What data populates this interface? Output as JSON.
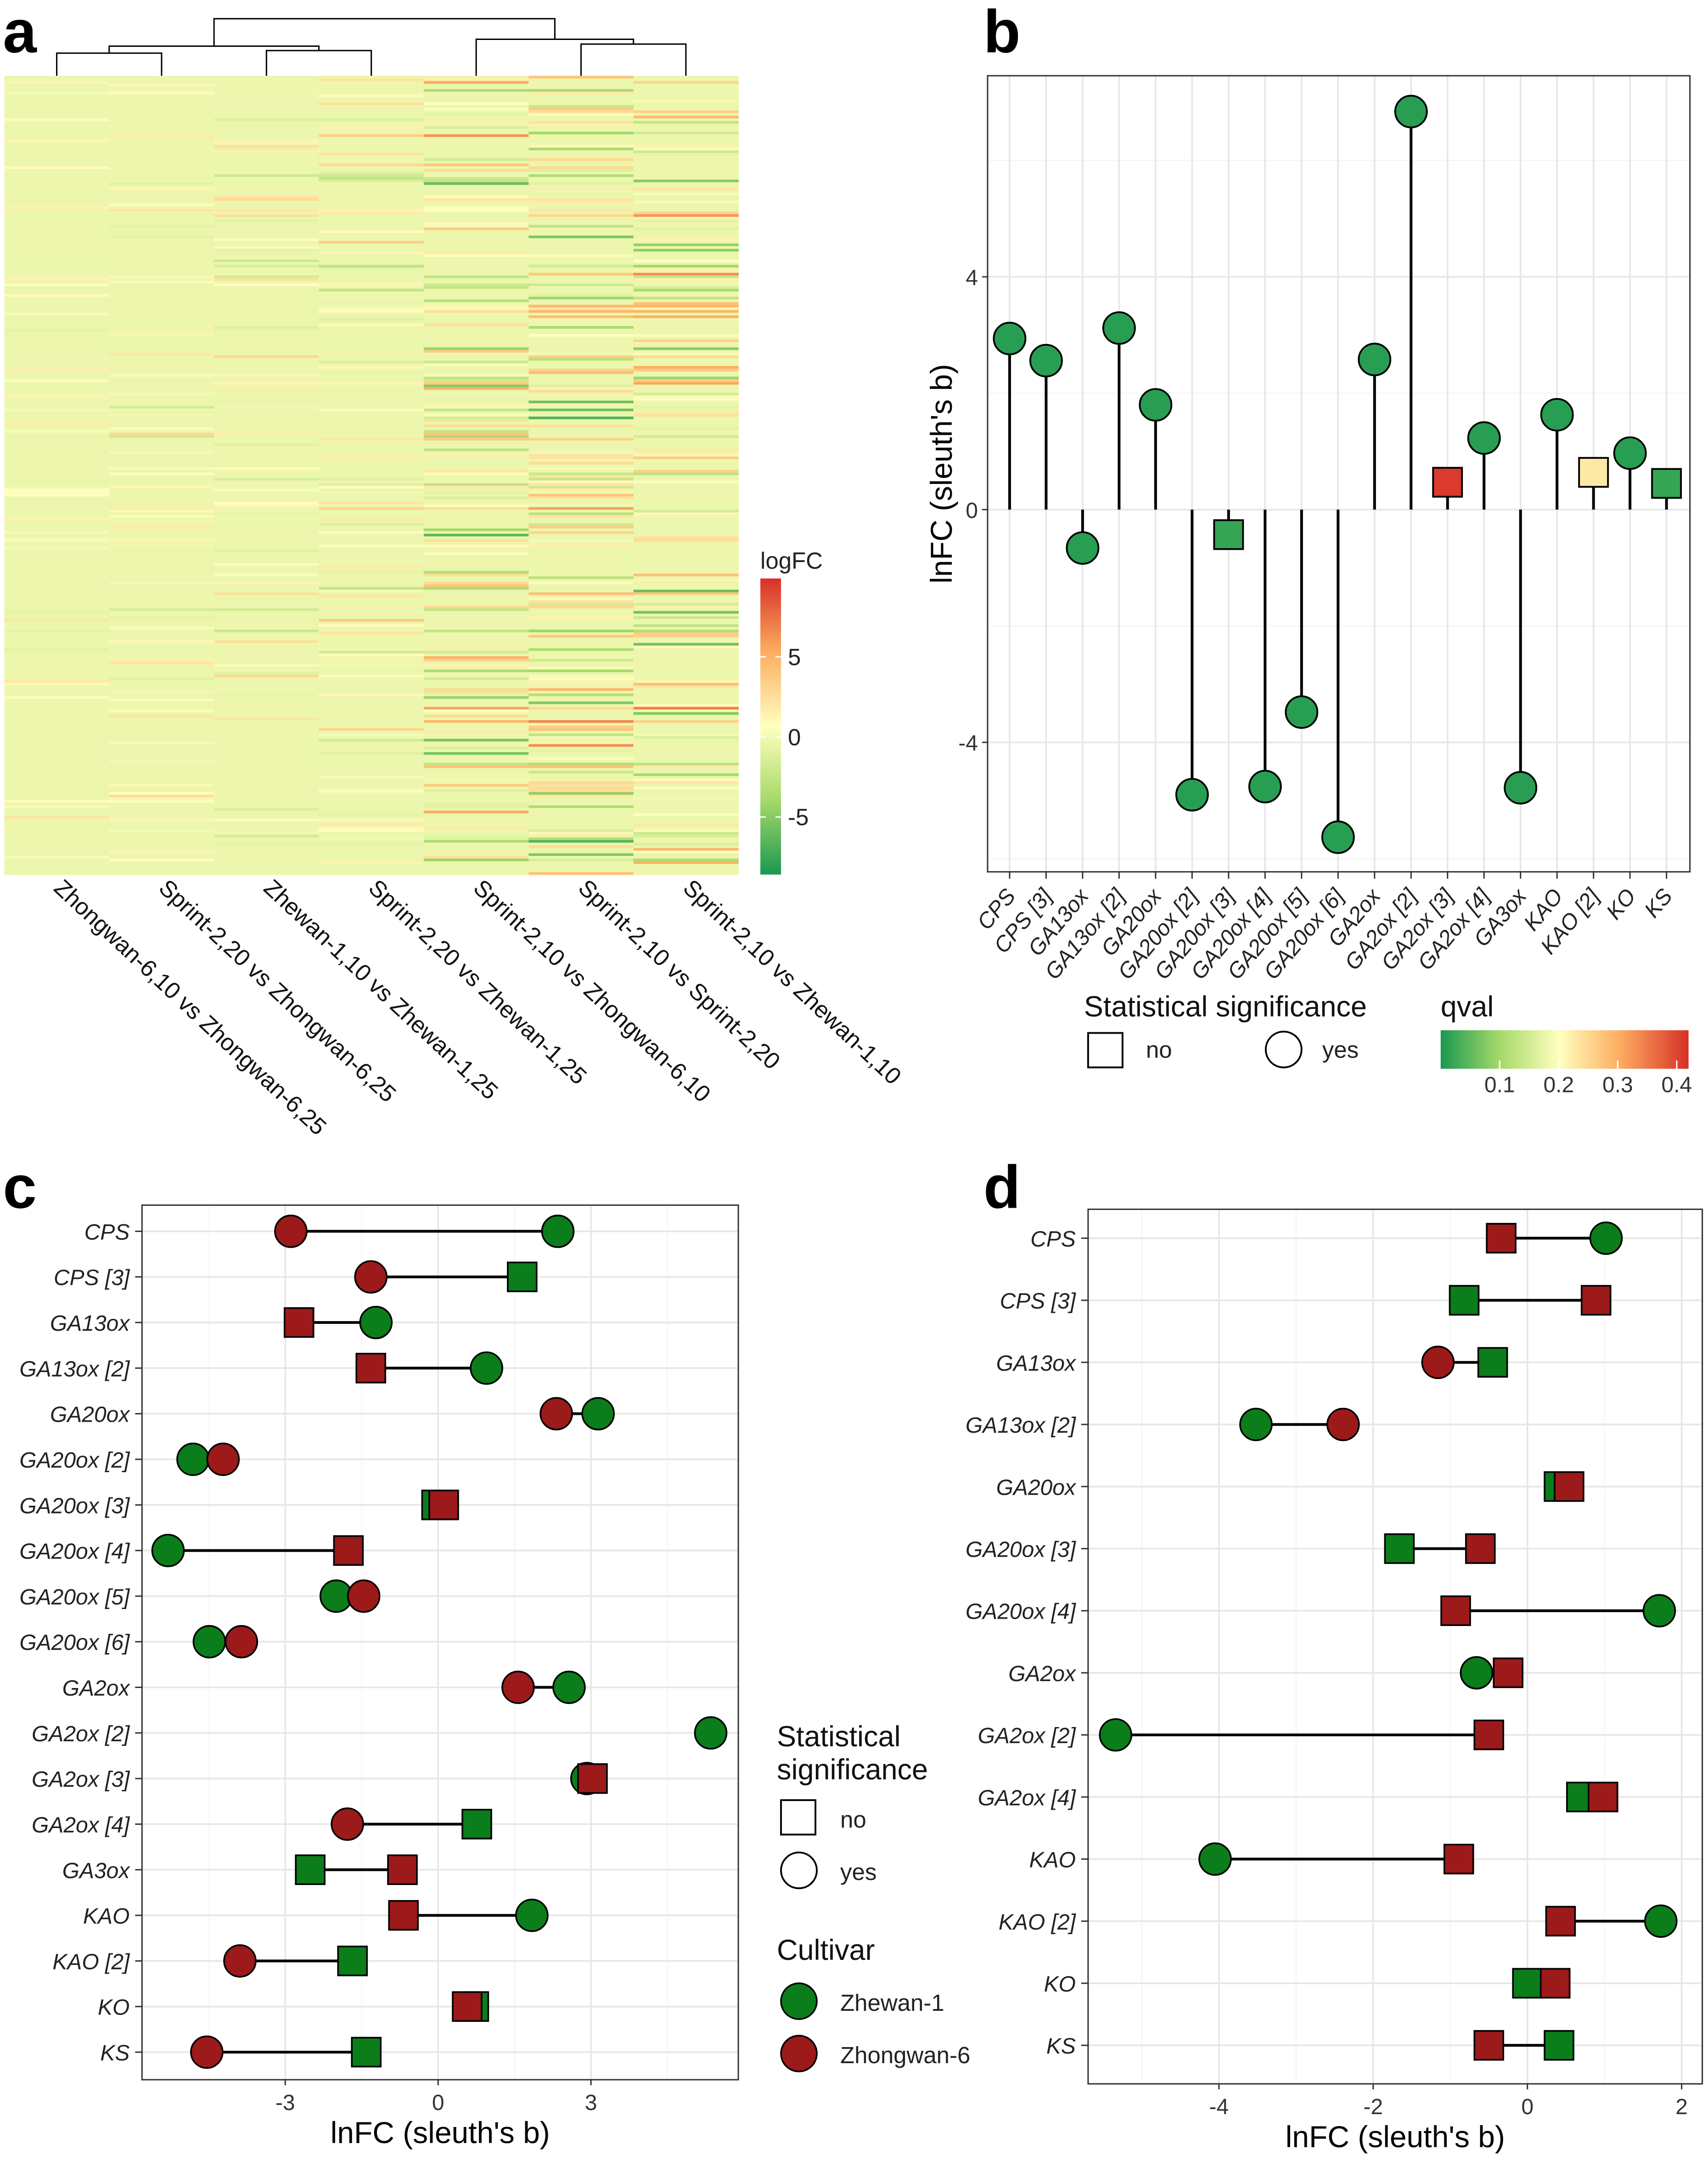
{
  "panels": {
    "a": "a",
    "b": "b",
    "c": "c",
    "d": "d"
  },
  "colors": {
    "zhewan": "#0b7d1b",
    "zhongwan": "#9c1a1a",
    "q_low": "#1a9850",
    "q_mid": "#ffffbf",
    "q_high": "#d73027"
  },
  "chart_data": [
    {
      "panel": "a",
      "type": "heatmap",
      "columns": [
        "Zhongwan-6,10 vs Zhongwan-6,25",
        "Sprint-2,20 vs Zhongwan-6,25",
        "Zhewan-1,10 vs Zhewan-1,25",
        "Sprint-2,20 vs Zhewan-1,25",
        "Sprint-2,10 vs Zhongwan-6,10",
        "Sprint-2,10 vs Sprint-2,20",
        "Sprint-2,10 vs Zhewan-1,10"
      ],
      "dendrogram": "((1,2),(3,4)),(5,(6,7))",
      "colorbar": {
        "title": "logFC",
        "ticks": [
          "5",
          "0",
          "-5"
        ],
        "range": [
          -8.6,
          9.9
        ]
      }
    },
    {
      "panel": "b",
      "type": "lollipop",
      "ylabel": "lnFC (sleuth's b)",
      "yticks": [
        "4",
        "0",
        "-4"
      ],
      "ylim": [
        -6.2,
        7.5
      ],
      "categories": [
        "CPS",
        "CPS [3]",
        "GA13ox",
        "GA13ox [2]",
        "GA20ox",
        "GA20ox [2]",
        "GA20ox [3]",
        "GA20ox [4]",
        "GA20ox [5]",
        "GA20ox [6]",
        "GA2ox",
        "GA2ox [2]",
        "GA2ox [3]",
        "GA2ox [4]",
        "GA3ox",
        "KAO",
        "KAO [2]",
        "KO",
        "KS"
      ],
      "values": [
        2.94,
        2.56,
        -0.66,
        3.12,
        1.8,
        -4.9,
        -0.43,
        -4.76,
        -3.48,
        -5.63,
        2.58,
        6.84,
        0.47,
        1.23,
        -4.78,
        1.63,
        0.64,
        0.97,
        0.45
      ],
      "significant": [
        true,
        true,
        true,
        true,
        true,
        true,
        false,
        true,
        true,
        true,
        true,
        true,
        false,
        true,
        true,
        true,
        false,
        true,
        false
      ],
      "qval": [
        0.01,
        0.01,
        0.01,
        0.01,
        0.01,
        0.01,
        0.02,
        0.01,
        0.01,
        0.01,
        0.01,
        0.01,
        0.41,
        0.01,
        0.01,
        0.01,
        0.23,
        0.01,
        0.02
      ],
      "legend": {
        "shape_title": "Statistical  significance",
        "no": "no",
        "yes": "yes",
        "color_title": "qval",
        "color_ticks": [
          "0.1",
          "0.2",
          "0.3",
          "0.4"
        ],
        "color_range": [
          0,
          0.42
        ]
      }
    },
    {
      "panel": "c",
      "type": "dumbbell",
      "xlabel": "lnFC (sleuth's b)",
      "xticks": [
        "-3",
        "0",
        "3"
      ],
      "xlim": [
        -5.73,
        5.97
      ],
      "categories": [
        "CPS",
        "CPS [3]",
        "GA13ox",
        "GA13ox [2]",
        "GA20ox",
        "GA20ox [2]",
        "GA20ox [3]",
        "GA20ox [4]",
        "GA20ox [5]",
        "GA20ox [6]",
        "GA2ox",
        "GA2ox [2]",
        "GA2ox [3]",
        "GA2ox [4]",
        "GA3ox",
        "KAO",
        "KAO [2]",
        "KO",
        "KS"
      ],
      "series": [
        {
          "name": "Zhewan-1",
          "values": [
            2.35,
            1.65,
            -1.22,
            0.95,
            3.14,
            -4.81,
            -0.03,
            -5.3,
            -2.0,
            -4.49,
            2.57,
            5.35,
            2.92,
            0.76,
            -2.51,
            1.84,
            -1.68,
            0.7,
            -1.41
          ],
          "significant": [
            true,
            false,
            true,
            true,
            true,
            true,
            false,
            true,
            true,
            true,
            true,
            true,
            true,
            false,
            false,
            true,
            false,
            false,
            false
          ]
        },
        {
          "name": "Zhongwan-6",
          "values": [
            -2.89,
            -1.32,
            -2.73,
            -1.32,
            2.32,
            -4.22,
            0.11,
            -1.76,
            -1.46,
            -3.86,
            1.57,
            null,
            3.03,
            -1.78,
            -0.7,
            -0.68,
            -3.89,
            0.57,
            -4.54
          ],
          "significant": [
            true,
            true,
            false,
            false,
            true,
            true,
            false,
            false,
            true,
            true,
            true,
            null,
            false,
            true,
            false,
            false,
            true,
            false,
            true
          ]
        }
      ],
      "legend": {
        "shape_title_1": "Statistical",
        "shape_title_2": "significance",
        "no": "no",
        "yes": "yes",
        "color_title": "Cultivar",
        "zhewan": "Zhewan-1",
        "zhongwan": "Zhongwan-6"
      }
    },
    {
      "panel": "d",
      "type": "dumbbell",
      "xlabel": "lnFC (sleuth's b)",
      "xticks": [
        "-4",
        "-2",
        "0",
        "2"
      ],
      "xlim": [
        -5.7,
        2.27
      ],
      "categories": [
        "CPS",
        "CPS [3]",
        "GA13ox",
        "GA13ox [2]",
        "GA20ox",
        "GA20ox [3]",
        "GA20ox [4]",
        "GA2ox",
        "GA2ox [2]",
        "GA2ox [4]",
        "KAO",
        "KAO [2]",
        "KO",
        "KS"
      ],
      "series": [
        {
          "name": "Zhewan-1",
          "values": [
            1.02,
            -0.82,
            -0.45,
            -3.52,
            0.41,
            -1.66,
            1.71,
            -0.66,
            -5.34,
            0.7,
            -4.05,
            1.73,
            0.0,
            0.41
          ],
          "significant": [
            true,
            false,
            false,
            true,
            false,
            false,
            true,
            true,
            true,
            false,
            true,
            true,
            false,
            false
          ]
        },
        {
          "name": "Zhongwan-6",
          "values": [
            -0.34,
            0.89,
            -1.16,
            -2.39,
            0.54,
            -0.61,
            -0.93,
            -0.25,
            -0.5,
            0.98,
            -0.89,
            0.43,
            0.36,
            -0.5
          ],
          "significant": [
            false,
            false,
            true,
            true,
            false,
            false,
            false,
            false,
            false,
            false,
            false,
            false,
            false,
            false
          ]
        }
      ]
    }
  ]
}
